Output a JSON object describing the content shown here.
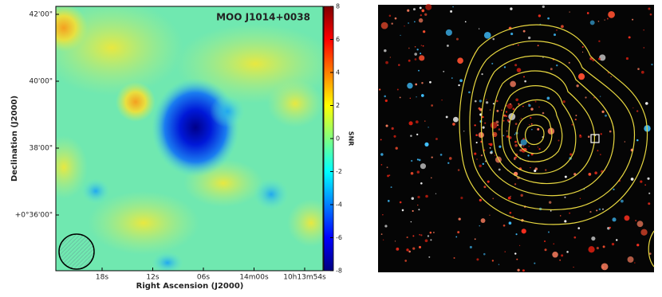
{
  "chart_data": {
    "type": "heatmap",
    "title": "MOO J1014+0038",
    "xlabel": "Right Ascension (J2000)",
    "ylabel": "Declination (J2000)",
    "x_tick_labels": [
      "18s",
      "12s",
      "06s",
      "14m00s",
      "10h13m54s"
    ],
    "y_tick_labels": [
      "42'00\"",
      "40'00\"",
      "38'00\"",
      "+0°36'00\""
    ],
    "colorbar": {
      "label": "SNR",
      "lim": [
        -8,
        8
      ],
      "ticks": [
        -8,
        -6,
        -4,
        -2,
        0,
        2,
        4,
        6,
        8
      ]
    }
  }
}
